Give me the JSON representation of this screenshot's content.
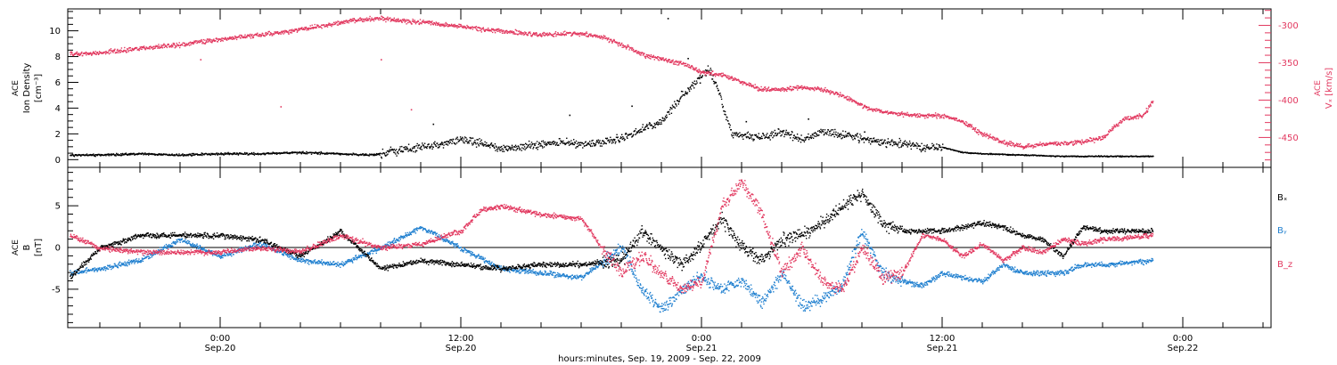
{
  "colors": {
    "black": "#000000",
    "pink": "#e2385f",
    "blue": "#1f7fcf"
  },
  "chart_data": [
    {
      "type": "scatter",
      "panel": "top",
      "xlabel": "hours:minutes, Sep. 19, 2009 - Sep. 22, 2009",
      "x_tick_labels": [
        {
          "time": "0:00",
          "date": "Sep.20",
          "hours": 0
        },
        {
          "time": "12:00",
          "date": "Sep.20",
          "hours": 12
        },
        {
          "time": "0:00",
          "date": "Sep.21",
          "hours": 24
        },
        {
          "time": "12:00",
          "date": "Sep.21",
          "hours": 36
        },
        {
          "time": "0:00",
          "date": "Sep.22",
          "hours": 48
        }
      ],
      "xlim_hours": [
        -7.6,
        52.4
      ],
      "y_left": {
        "label_lines": [
          "ACE",
          "Ion Density",
          "[cm⁻³]"
        ],
        "ylim": [
          -0.6,
          11.7
        ],
        "ticks": [
          0,
          2,
          4,
          6,
          8,
          10
        ]
      },
      "y_right": {
        "label_lines": [
          "ACE",
          "Vₓ [km/s]"
        ],
        "ylim": [
          -490,
          -278
        ],
        "ticks": [
          -300,
          -350,
          -400,
          -450
        ]
      },
      "series": [
        {
          "name": "",
          "axis": "left",
          "color": "#000000",
          "points": [
            [
              -7.5,
              0.4
            ],
            [
              -6,
              0.4
            ],
            [
              -4,
              0.5
            ],
            [
              -2,
              0.4
            ],
            [
              0,
              0.5
            ],
            [
              2,
              0.5
            ],
            [
              4,
              0.6
            ],
            [
              6,
              0.5
            ],
            [
              7.5,
              0.4
            ],
            [
              9,
              0.8
            ],
            [
              10,
              1.0
            ],
            [
              11,
              1.2
            ],
            [
              12,
              1.6
            ],
            [
              13,
              1.3
            ],
            [
              14,
              0.9
            ],
            [
              16,
              1.2
            ],
            [
              17,
              1.4
            ],
            [
              18,
              1.2
            ],
            [
              19,
              1.4
            ],
            [
              20,
              1.7
            ],
            [
              21,
              2.4
            ],
            [
              22,
              3.0
            ],
            [
              23,
              5.0
            ],
            [
              24,
              6.5
            ],
            [
              24.3,
              7.2
            ],
            [
              24.8,
              5.5
            ],
            [
              25.5,
              2.0
            ],
            [
              27,
              1.8
            ],
            [
              28,
              2.2
            ],
            [
              29,
              1.6
            ],
            [
              30,
              2.2
            ],
            [
              31,
              2.0
            ],
            [
              32,
              1.7
            ],
            [
              33,
              1.4
            ],
            [
              34,
              1.3
            ],
            [
              35,
              1.0
            ],
            [
              36,
              1.0
            ],
            [
              37,
              0.6
            ],
            [
              38,
              0.5
            ],
            [
              40,
              0.4
            ],
            [
              42,
              0.3
            ],
            [
              44,
              0.3
            ],
            [
              45,
              0.3
            ],
            [
              46.5,
              0.3
            ]
          ],
          "outliers": [
            [
              20.5,
              4.2
            ],
            [
              23.3,
              7.9
            ],
            [
              23.9,
              6.0
            ],
            [
              17.4,
              3.5
            ],
            [
              10.6,
              2.8
            ],
            [
              22.3,
              11.0
            ],
            [
              26.2,
              3.0
            ],
            [
              29.3,
              3.2
            ],
            [
              32.1,
              2.2
            ]
          ]
        },
        {
          "name": "",
          "axis": "right",
          "color": "#e2385f",
          "points": [
            [
              -7.5,
              -338
            ],
            [
              -6,
              -336
            ],
            [
              -4,
              -330
            ],
            [
              -2,
              -325
            ],
            [
              0,
              -318
            ],
            [
              2,
              -312
            ],
            [
              4,
              -305
            ],
            [
              6,
              -295
            ],
            [
              7,
              -292
            ],
            [
              8,
              -290
            ],
            [
              9,
              -293
            ],
            [
              10,
              -295
            ],
            [
              12,
              -301
            ],
            [
              14,
              -307
            ],
            [
              16,
              -312
            ],
            [
              18,
              -310
            ],
            [
              19,
              -315
            ],
            [
              20,
              -325
            ],
            [
              21,
              -338
            ],
            [
              22,
              -345
            ],
            [
              23,
              -350
            ],
            [
              24,
              -362
            ],
            [
              25,
              -365
            ],
            [
              26,
              -375
            ],
            [
              27,
              -385
            ],
            [
              28,
              -385
            ],
            [
              29,
              -382
            ],
            [
              30,
              -385
            ],
            [
              31,
              -393
            ],
            [
              32,
              -407
            ],
            [
              33,
              -415
            ],
            [
              34,
              -418
            ],
            [
              35,
              -420
            ],
            [
              36,
              -420
            ],
            [
              37,
              -428
            ],
            [
              38,
              -445
            ],
            [
              39,
              -455
            ],
            [
              40,
              -462
            ],
            [
              41,
              -458
            ],
            [
              42,
              -457
            ],
            [
              43,
              -455
            ],
            [
              44,
              -450
            ],
            [
              45,
              -425
            ],
            [
              46,
              -420
            ],
            [
              46.5,
              -400
            ]
          ],
          "outliers": [
            [
              -1,
              -345
            ],
            [
              8,
              -345
            ],
            [
              3,
              -408
            ],
            [
              9.5,
              -412
            ]
          ]
        }
      ]
    },
    {
      "type": "scatter",
      "panel": "bottom",
      "xlabel": "hours:minutes, Sep. 19, 2009 - Sep. 22, 2009",
      "xlim_hours": [
        -7.6,
        52.4
      ],
      "y_left": {
        "label_lines": [
          "ACE",
          "B",
          "[nT]"
        ],
        "ylim": [
          -9.6,
          9.6
        ],
        "ticks": [
          -5,
          0,
          5
        ]
      },
      "legend_position": "right",
      "legend": [
        "Bₓ",
        "Bᵧ",
        "B_z"
      ],
      "series": [
        {
          "name": "Bₓ",
          "color": "#000000",
          "points": [
            [
              -7.5,
              -3.5
            ],
            [
              -6,
              0
            ],
            [
              -4,
              1.5
            ],
            [
              -2,
              1.5
            ],
            [
              0,
              1.5
            ],
            [
              2,
              1.0
            ],
            [
              4,
              -1.0
            ],
            [
              6,
              2.0
            ],
            [
              8,
              -2.5
            ],
            [
              10,
              -1.5
            ],
            [
              12,
              -2.0
            ],
            [
              14,
              -2.5
            ],
            [
              16,
              -2.0
            ],
            [
              18,
              -2.0
            ],
            [
              20,
              -1.5
            ],
            [
              21,
              2.0
            ],
            [
              22,
              0
            ],
            [
              23,
              -2.0
            ],
            [
              24,
              0.5
            ],
            [
              25,
              3.5
            ],
            [
              26,
              0
            ],
            [
              27,
              -1.5
            ],
            [
              28,
              1.0
            ],
            [
              29,
              1.5
            ],
            [
              30,
              3.0
            ],
            [
              31,
              5.0
            ],
            [
              32,
              6.5
            ],
            [
              33,
              3.0
            ],
            [
              34,
              2.0
            ],
            [
              35,
              2.0
            ],
            [
              36,
              2.0
            ],
            [
              37,
              2.5
            ],
            [
              38,
              3.0
            ],
            [
              39,
              2.5
            ],
            [
              40,
              1.5
            ],
            [
              41,
              1.0
            ],
            [
              42,
              -1.0
            ],
            [
              43,
              2.5
            ],
            [
              44,
              2.0
            ],
            [
              46.5,
              2.0
            ]
          ]
        },
        {
          "name": "Bᵧ",
          "color": "#1f7fcf",
          "points": [
            [
              -7.5,
              -3.0
            ],
            [
              -6,
              -2.5
            ],
            [
              -4,
              -1.5
            ],
            [
              -2,
              1.0
            ],
            [
              0,
              -1.0
            ],
            [
              2,
              0.5
            ],
            [
              4,
              -1.5
            ],
            [
              6,
              -2.0
            ],
            [
              8,
              0
            ],
            [
              10,
              2.5
            ],
            [
              12,
              0
            ],
            [
              14,
              -2.5
            ],
            [
              16,
              -3.0
            ],
            [
              18,
              -3.5
            ],
            [
              20,
              0
            ],
            [
              21,
              -5.0
            ],
            [
              22,
              -7.5
            ],
            [
              23,
              -5.0
            ],
            [
              24,
              -3.5
            ],
            [
              25,
              -5.0
            ],
            [
              26,
              -4.0
            ],
            [
              27,
              -6.5
            ],
            [
              28,
              -3.0
            ],
            [
              29,
              -7.0
            ],
            [
              30,
              -6.0
            ],
            [
              31,
              -4.5
            ],
            [
              32,
              2.0
            ],
            [
              33,
              -3.0
            ],
            [
              34,
              -4.0
            ],
            [
              35,
              -4.5
            ],
            [
              36,
              -3.0
            ],
            [
              37,
              -3.5
            ],
            [
              38,
              -4.0
            ],
            [
              39,
              -2.0
            ],
            [
              40,
              -3.0
            ],
            [
              41,
              -3.0
            ],
            [
              42,
              -3.0
            ],
            [
              43,
              -2.0
            ],
            [
              44,
              -2.0
            ],
            [
              46.5,
              -1.5
            ]
          ]
        },
        {
          "name": "B_z",
          "color": "#e2385f",
          "points": [
            [
              -7.5,
              1.5
            ],
            [
              -6,
              0
            ],
            [
              -4,
              -0.5
            ],
            [
              -2,
              -0.5
            ],
            [
              0,
              -0.5
            ],
            [
              2,
              0
            ],
            [
              4,
              -0.5
            ],
            [
              6,
              1.5
            ],
            [
              8,
              0
            ],
            [
              10,
              0.5
            ],
            [
              12,
              2.0
            ],
            [
              13,
              4.5
            ],
            [
              14,
              5.0
            ],
            [
              16,
              4.0
            ],
            [
              18,
              3.5
            ],
            [
              19,
              0
            ],
            [
              20,
              -3.0
            ],
            [
              21,
              -1.0
            ],
            [
              22,
              -3.0
            ],
            [
              23,
              -5.0
            ],
            [
              24,
              -4.0
            ],
            [
              25,
              5.0
            ],
            [
              26,
              8.0
            ],
            [
              27,
              4.0
            ],
            [
              28,
              -3.0
            ],
            [
              29,
              0
            ],
            [
              30,
              -4.0
            ],
            [
              31,
              -5.0
            ],
            [
              32,
              0
            ],
            [
              33,
              -3.5
            ],
            [
              34,
              -3.0
            ],
            [
              35,
              1.5
            ],
            [
              36,
              1.0
            ],
            [
              37,
              -1.0
            ],
            [
              38,
              0.5
            ],
            [
              39,
              -1.5
            ],
            [
              40,
              0
            ],
            [
              41,
              -0.5
            ],
            [
              42,
              1.0
            ],
            [
              43,
              0.5
            ],
            [
              44,
              1.0
            ],
            [
              46.5,
              1.5
            ]
          ]
        }
      ]
    }
  ]
}
